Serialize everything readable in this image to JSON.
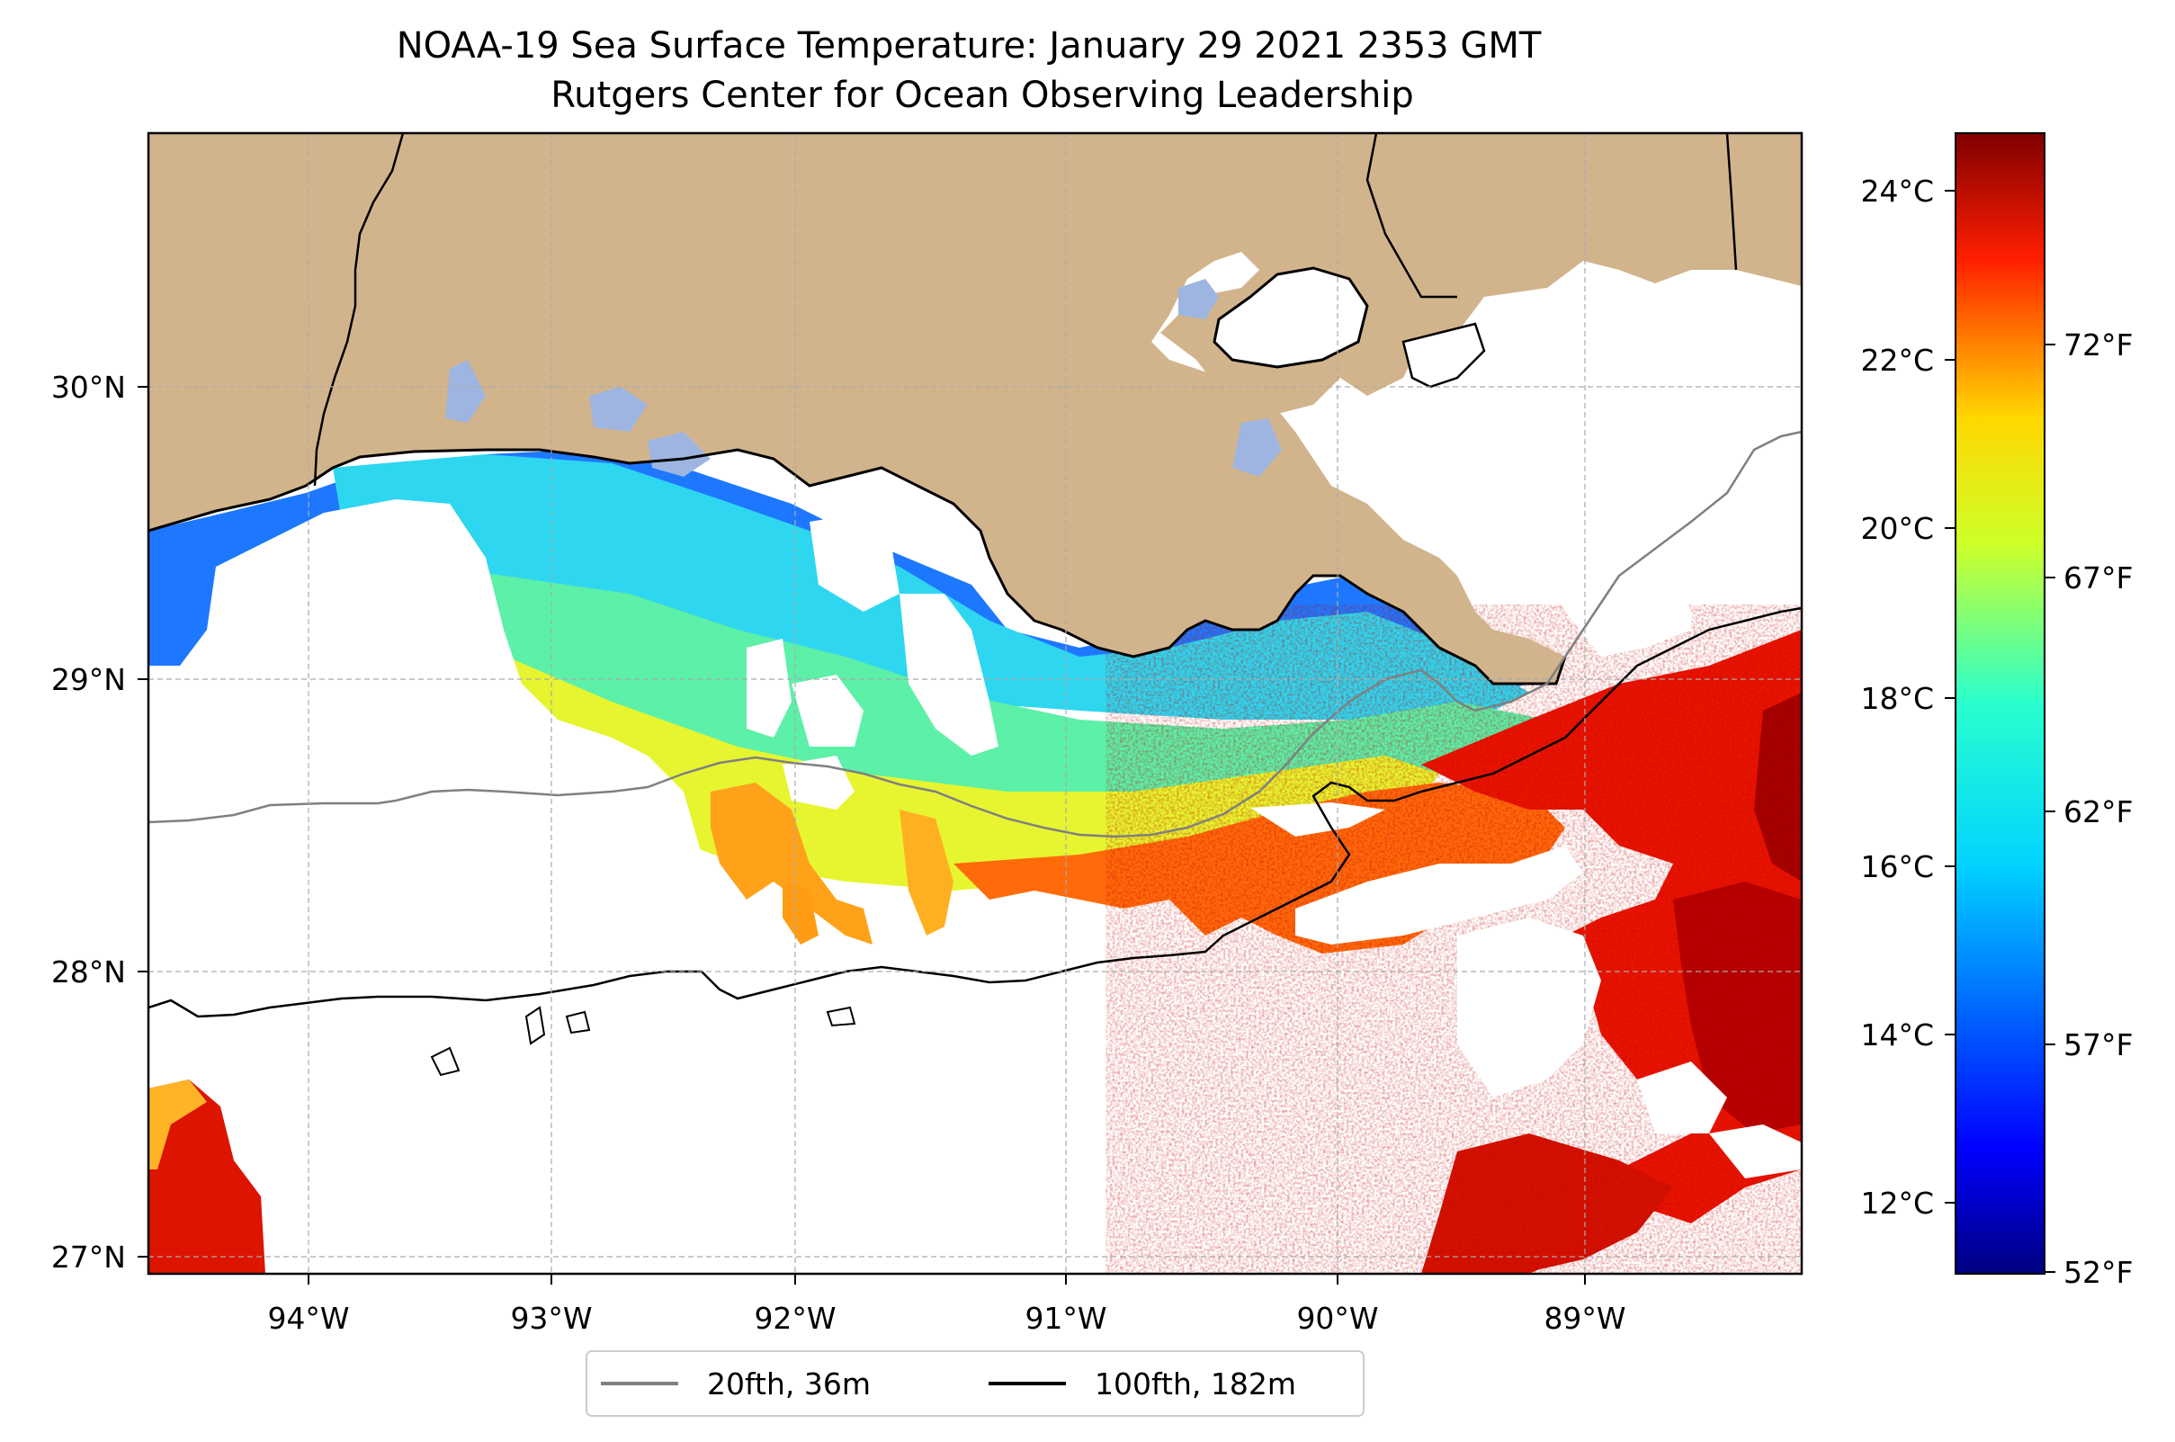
{
  "title_line1": "NOAA-19 Sea Surface Temperature: January 29 2021 2353 GMT",
  "title_line2": "Rutgers Center for Ocean Observing Leadership",
  "map": {
    "lon_labels": [
      "94°W",
      "93°W",
      "92°W",
      "91°W",
      "90°W",
      "89°W"
    ],
    "lat_labels": [
      "30°N",
      "29°N",
      "28°N",
      "27°N"
    ],
    "land_color": "#d2b48c",
    "grid": true
  },
  "colorbar": {
    "celsius_labels": [
      "24°C",
      "22°C",
      "20°C",
      "18°C",
      "16°C",
      "14°C",
      "12°C"
    ],
    "fahrenheit_labels": [
      "72°F",
      "67°F",
      "62°F",
      "57°F",
      "52°F"
    ],
    "colormap": "jet"
  },
  "legend": {
    "items": [
      {
        "label": "20fth, 36m",
        "color": "#808080"
      },
      {
        "label": "100fth, 182m",
        "color": "#000000"
      }
    ],
    "placement": "bottom-center"
  }
}
